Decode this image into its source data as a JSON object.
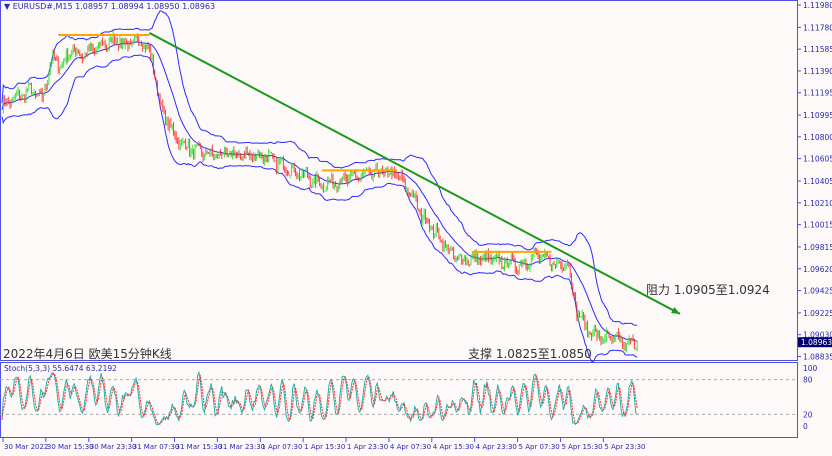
{
  "header": {
    "arrow": "▼",
    "symbol": "EURUSD#,M15",
    "open": "1.08957",
    "high": "1.08994",
    "low": "1.08950",
    "close": "1.08963"
  },
  "annotations": {
    "date_title": "2022年4月6日 欧美15分钟K线",
    "support": "支撑 1.0825至1.0850",
    "resistance": "阻力 1.0905至1.0924"
  },
  "stoch_label": "Stoch(5,3,3) 55.6474 63.2192",
  "chart_data": {
    "type": "candlestick",
    "symbol": "EURUSD#",
    "timeframe": "M15",
    "ylim": [
      1.08835,
      1.1198
    ],
    "y_ticks": [
      "1.11980",
      "1.11780",
      "1.11585",
      "1.11390",
      "1.11195",
      "1.10995",
      "1.10800",
      "1.10605",
      "1.10405",
      "1.10210",
      "1.10015",
      "1.09815",
      "1.09620",
      "1.09425",
      "1.09225",
      "1.09030",
      "1.08835"
    ],
    "current_price": "1.08963",
    "x_ticks": [
      "30 Mar 2022",
      "30 Mar 15:30",
      "30 Mar 23:30",
      "31 Mar 07:30",
      "31 Mar 15:30",
      "31 Mar 23:30",
      "1 Apr 07:30",
      "1 Apr 15:30",
      "1 Apr 23:30",
      "4 Apr 07:30",
      "4 Apr 15:30",
      "4 Apr 23:30",
      "5 Apr 07:30",
      "5 Apr 15:30",
      "5 Apr 23:30"
    ],
    "bars_per_x_tick": 32,
    "close_path": [
      [
        0,
        1.11086
      ],
      [
        15,
        1.11175
      ],
      [
        22,
        1.1122
      ],
      [
        30,
        1.1113
      ],
      [
        37,
        1.11488
      ],
      [
        45,
        1.11443
      ],
      [
        52,
        1.11577
      ],
      [
        60,
        1.11533
      ],
      [
        75,
        1.11622
      ],
      [
        86,
        1.11667
      ],
      [
        93,
        1.11622
      ],
      [
        105,
        1.11667
      ],
      [
        112,
        1.11488
      ],
      [
        119,
        1.11041
      ],
      [
        131,
        1.10772
      ],
      [
        142,
        1.10683
      ],
      [
        157,
        1.10638
      ],
      [
        179,
        1.10638
      ],
      [
        194,
        1.10638
      ],
      [
        209,
        1.10549
      ],
      [
        224,
        1.10459
      ],
      [
        239,
        1.1037
      ],
      [
        254,
        1.10415
      ],
      [
        269,
        1.10459
      ],
      [
        284,
        1.10486
      ],
      [
        295,
        1.10459
      ],
      [
        306,
        1.10281
      ],
      [
        313,
        1.10102
      ],
      [
        325,
        1.09923
      ],
      [
        336,
        1.09744
      ],
      [
        343,
        1.09699
      ],
      [
        358,
        1.09717
      ],
      [
        373,
        1.09681
      ],
      [
        388,
        1.09654
      ],
      [
        399,
        1.09744
      ],
      [
        407,
        1.09699
      ],
      [
        414,
        1.09654
      ],
      [
        422,
        1.09699
      ],
      [
        425,
        1.09476
      ],
      [
        429,
        1.09252
      ],
      [
        437,
        1.09073
      ],
      [
        448,
        1.09001
      ],
      [
        459,
        1.08984
      ],
      [
        466,
        1.08939
      ],
      [
        474,
        1.08963
      ]
    ],
    "bollinger": {
      "period": 20,
      "deviations": 2,
      "color": "#2b2bff"
    },
    "candle_colors": {
      "up": "#22dd22",
      "down": "#ff2020"
    },
    "horizontal_lines": [
      {
        "from_bar": 42,
        "to_bar": 110,
        "price": 1.11712,
        "color": "#ffa500"
      },
      {
        "from_bar": 239,
        "to_bar": 295,
        "price": 1.105,
        "color": "#ffa500"
      },
      {
        "from_bar": 351,
        "to_bar": 410,
        "price": 1.09771,
        "color": "#ffa500"
      }
    ],
    "trendline": {
      "from": [
        110,
        1.1173
      ],
      "to": [
        506,
        1.09216
      ],
      "color": "#1a9a1a",
      "arrow": true
    },
    "stochastic": {
      "k": 5,
      "d": 3,
      "slowing": 3,
      "main_value": "55.6474",
      "signal_value": "63.2192",
      "levels": [
        20,
        80
      ],
      "ylim": [
        0,
        100
      ],
      "y_ticks": [
        "100",
        "80",
        "20",
        "0"
      ],
      "main_color": "#20b2aa",
      "signal_color": "#ff3030"
    }
  }
}
